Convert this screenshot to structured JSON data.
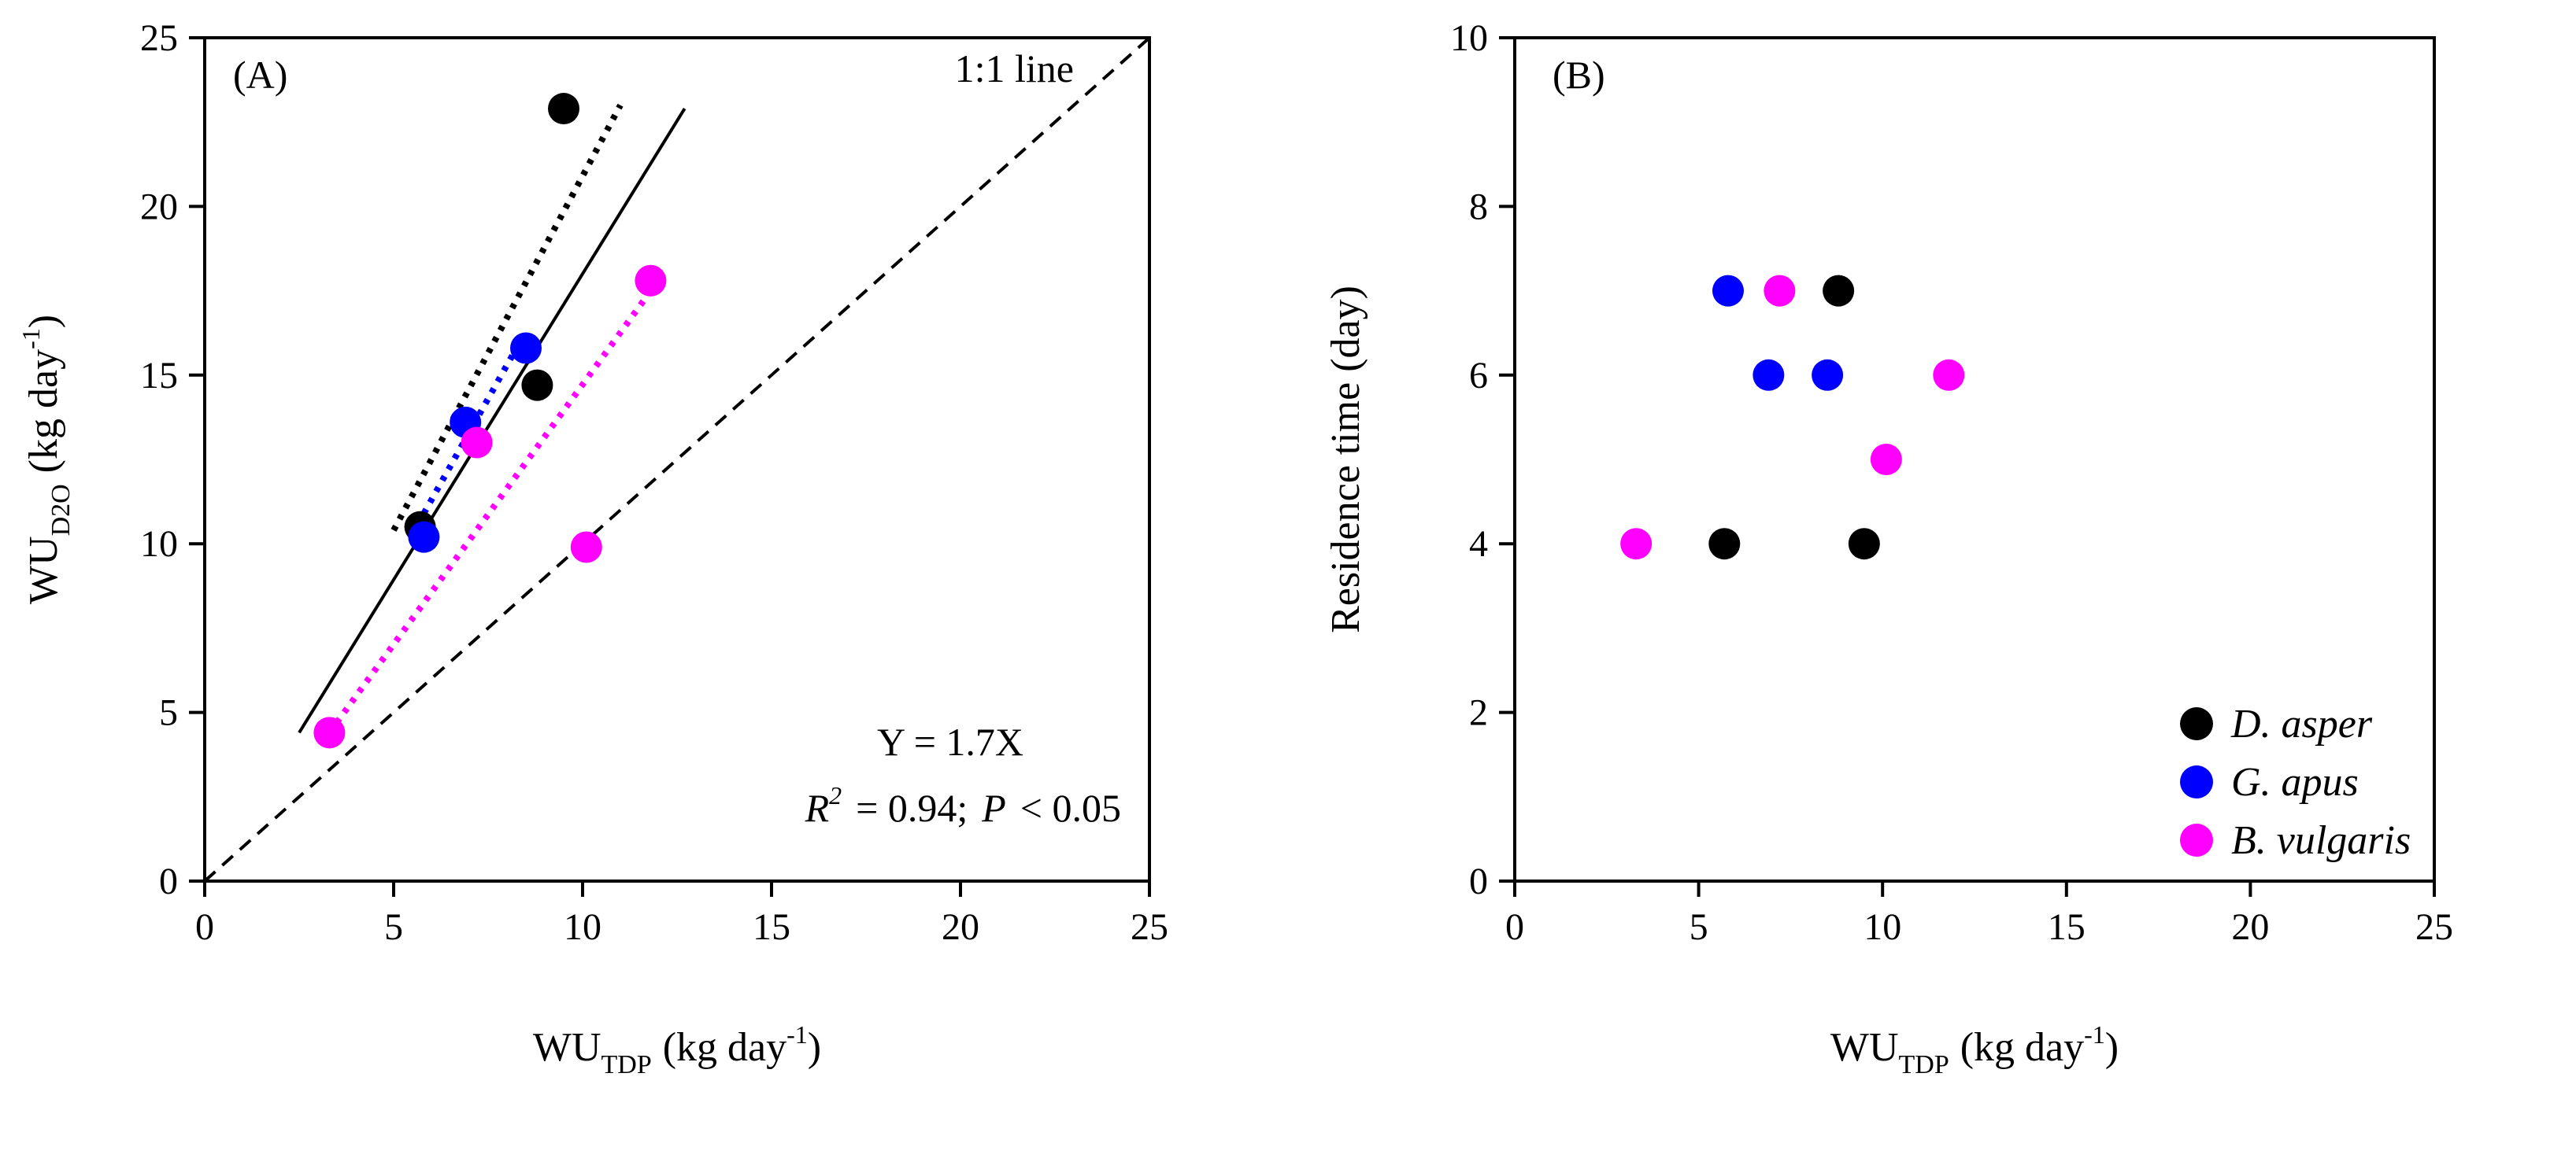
{
  "chart_data": [
    {
      "type": "scatter",
      "panel_label": "(A)",
      "xlabel": {
        "main": "WU",
        "sub": "TDP",
        "rest": "(kg day",
        "sup": "-1",
        "end": ")"
      },
      "ylabel": {
        "main": "WU",
        "sub": "D2O",
        "rest": "(kg day",
        "sup": "-1",
        "end": ")"
      },
      "xlim": [
        0,
        25
      ],
      "ylim": [
        0,
        25
      ],
      "xticks": [
        "0",
        "5",
        "10",
        "15",
        "20",
        "25"
      ],
      "yticks": [
        "0",
        "5",
        "10",
        "15",
        "20",
        "25"
      ],
      "identity_line_label": "1:1 line",
      "equation": "Y  = 1.7X",
      "stats": {
        "r2_label": "R",
        "r2_sup": "2",
        "r2_value": "= 0.94;",
        "p_label": "P",
        "p_value": "< 0.05"
      },
      "series": [
        {
          "name": "D. asper",
          "color": "#000000",
          "points": [
            [
              5.7,
              10.5
            ],
            [
              8.8,
              14.7
            ],
            [
              9.5,
              22.9
            ]
          ]
        },
        {
          "name": "G. apus",
          "color": "#0000ff",
          "points": [
            [
              5.8,
              10.2
            ],
            [
              6.9,
              13.6
            ],
            [
              8.5,
              15.8
            ]
          ]
        },
        {
          "name": "B. vulgaris",
          "color": "#ff00ff",
          "points": [
            [
              3.3,
              4.4
            ],
            [
              7.2,
              13.0
            ],
            [
              10.1,
              9.9
            ],
            [
              11.8,
              17.8
            ]
          ]
        }
      ],
      "regression_lines": [
        {
          "name": "overall",
          "style": "solid",
          "color": "#000000",
          "from": [
            2.5,
            4.4
          ],
          "to": [
            12.7,
            22.9
          ]
        },
        {
          "name": "D. asper",
          "style": "dotted",
          "color": "#000000",
          "from": [
            5.0,
            10.4
          ],
          "to": [
            11.0,
            23.0
          ]
        },
        {
          "name": "G. apus",
          "style": "dotted",
          "color": "#0000ff",
          "from": [
            5.8,
            10.9
          ],
          "to": [
            8.3,
            15.9
          ]
        },
        {
          "name": "B. vulgaris",
          "style": "dotted",
          "color": "#ff00ff",
          "from": [
            3.3,
            4.4
          ],
          "to": [
            12.0,
            17.8
          ]
        }
      ]
    },
    {
      "type": "scatter",
      "panel_label": "(B)",
      "xlabel": {
        "main": "WU",
        "sub": "TDP",
        "rest": "(kg day",
        "sup": "-1",
        "end": ")"
      },
      "ylabel": {
        "main": "Residence time (day)"
      },
      "xlim": [
        0,
        25
      ],
      "ylim": [
        0,
        10
      ],
      "xticks": [
        "0",
        "5",
        "10",
        "15",
        "20",
        "25"
      ],
      "yticks": [
        "0",
        "2",
        "4",
        "6",
        "8",
        "10"
      ],
      "legend_position": "bottom-right",
      "series": [
        {
          "name": "D. asper",
          "color": "#000000",
          "points": [
            [
              5.7,
              4
            ],
            [
              8.8,
              7
            ],
            [
              9.5,
              4
            ]
          ]
        },
        {
          "name": "G. apus",
          "color": "#0000ff",
          "points": [
            [
              5.8,
              7
            ],
            [
              6.9,
              6
            ],
            [
              8.5,
              6
            ]
          ]
        },
        {
          "name": "B. vulgaris",
          "color": "#ff00ff",
          "points": [
            [
              3.3,
              4
            ],
            [
              7.2,
              7
            ],
            [
              10.1,
              5
            ],
            [
              11.8,
              6
            ]
          ]
        }
      ]
    }
  ]
}
